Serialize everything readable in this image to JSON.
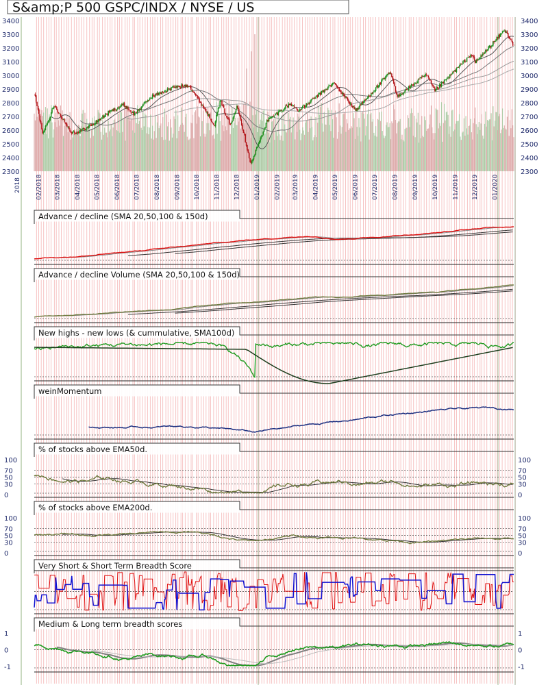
{
  "title": "S&amp;P 500 GSPC/INDX / NYSE / US",
  "colors": {
    "up_candle": "#1e8f1e",
    "down_candle": "#b3161b",
    "volume_up": "#9ec79a",
    "volume_down": "#d8a0a0",
    "ad_line": "#e01010",
    "adv_line": "#6f7a3f",
    "nhnl_line": "#1e9a1e",
    "momentum_line": "#1c2f80",
    "pct_line": "#6f7a3f",
    "very_short": "#e01010",
    "short_term": "#1010d0",
    "medium_term": "#1e9a1e",
    "long_term": "#808080",
    "grid_red": "#f4b0b0",
    "axis_text": "#1f2a6b"
  },
  "chart_data": [
    {
      "id": "price",
      "type": "candlestick",
      "title": "S&amp;P 500 GSPC/INDX / NYSE / US",
      "ylim": [
        2300,
        3400
      ],
      "y_ticks": [
        "3400",
        "3300",
        "3200",
        "3100",
        "3000",
        "2900",
        "2800",
        "2700",
        "2600",
        "2500",
        "2400",
        "2300"
      ],
      "year_label": "2018",
      "x_labels": [
        "02/2018",
        "03/2018",
        "04/2018",
        "05/2018",
        "06/2018",
        "07/2018",
        "08/2018",
        "09/2018",
        "10/2018",
        "11/2018",
        "12/2018",
        "01/2019",
        "02/2019",
        "03/2019",
        "04/2019",
        "05/2019",
        "06/2019",
        "07/2019",
        "08/2019",
        "09/2019",
        "10/2019",
        "11/2019",
        "12/2019",
        "01/2020"
      ],
      "close_path": [
        [
          "2018-01-26",
          2872
        ],
        [
          "2018-02-08",
          2581
        ],
        [
          "2018-02-26",
          2779
        ],
        [
          "2018-03-23",
          2588
        ],
        [
          "2018-04-02",
          2582
        ],
        [
          "2018-04-25",
          2639
        ],
        [
          "2018-05-21",
          2733
        ],
        [
          "2018-06-12",
          2786
        ],
        [
          "2018-06-28",
          2716
        ],
        [
          "2018-07-25",
          2846
        ],
        [
          "2018-08-29",
          2914
        ],
        [
          "2018-09-20",
          2930
        ],
        [
          "2018-10-10",
          2785
        ],
        [
          "2018-10-29",
          2641
        ],
        [
          "2018-11-07",
          2813
        ],
        [
          "2018-11-23",
          2633
        ],
        [
          "2018-12-03",
          2790
        ],
        [
          "2018-12-24",
          2351
        ],
        [
          "2019-01-18",
          2670
        ],
        [
          "2019-02-22",
          2792
        ],
        [
          "2019-03-08",
          2743
        ],
        [
          "2019-04-30",
          2945
        ],
        [
          "2019-06-03",
          2744
        ],
        [
          "2019-07-26",
          3025
        ],
        [
          "2019-08-05",
          2844
        ],
        [
          "2019-09-19",
          3006
        ],
        [
          "2019-10-02",
          2887
        ],
        [
          "2019-11-27",
          3153
        ],
        [
          "2019-12-03",
          3093
        ],
        [
          "2020-01-17",
          3330
        ],
        [
          "2020-01-31",
          3225
        ]
      ],
      "sma_ranges": [
        [
          2600,
          2800
        ],
        [
          2650,
          2780
        ],
        [
          2660,
          2760
        ],
        [
          2620,
          2720
        ]
      ]
    },
    {
      "id": "advance-decline",
      "type": "line",
      "title": "Advance / decline (SMA 20,50,100 & 150d)",
      "series": [
        {
          "name": "Advance / decline",
          "trend": "rising"
        }
      ]
    },
    {
      "id": "advance-decline-volume",
      "type": "line",
      "title": "Advance / decline Volume (SMA 20,50,100 & 150d)",
      "series": [
        {
          "name": "Advance / decline Volume",
          "trend": "rising"
        }
      ]
    },
    {
      "id": "new-highs-lows",
      "type": "line",
      "title": "New highs - new lows (& cummulative, SMA100d)",
      "series": [
        {
          "name": "New highs - new lows",
          "trend": "flat"
        }
      ]
    },
    {
      "id": "wein-momentum",
      "type": "line",
      "title": "weinMomentum",
      "series": [
        {
          "name": "weinMomentum",
          "trend": "rising"
        }
      ]
    },
    {
      "id": "pct-ema50",
      "type": "line",
      "title": "% of stocks above EMA50d.",
      "ylim": [
        0,
        100
      ],
      "y_ticks": [
        "100",
        "70",
        "50",
        "30",
        "0"
      ],
      "right_ticks": [
        "100",
        "70",
        "50",
        "30",
        "0"
      ]
    },
    {
      "id": "pct-ema200",
      "type": "line",
      "title": "% of stocks above EMA200d.",
      "ylim": [
        0,
        100
      ],
      "y_ticks": [
        "100",
        "70",
        "50",
        "30",
        "0"
      ],
      "right_ticks": [
        "100",
        "70",
        "50",
        "30",
        "0"
      ]
    },
    {
      "id": "short-breadth",
      "type": "line",
      "title": "Very Short & Short Term Breadth Score",
      "series": [
        {
          "name": "Very Short"
        },
        {
          "name": "Short Term"
        }
      ]
    },
    {
      "id": "medium-long-breadth",
      "type": "line",
      "title": "Medium & Long term breadth scores",
      "ylim": [
        -1,
        1
      ],
      "y_ticks": [
        "1",
        "0",
        "-1"
      ],
      "right_ticks": [
        "1",
        "0",
        "-1"
      ]
    }
  ]
}
